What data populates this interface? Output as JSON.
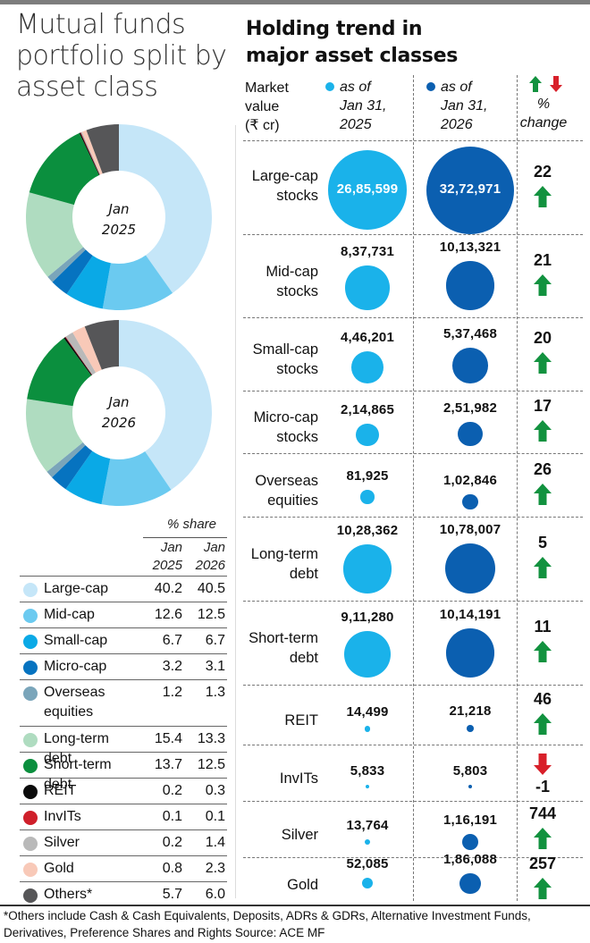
{
  "colors": {
    "large_cap": "#c5e6f8",
    "mid_cap": "#6bcaf0",
    "small_cap": "#0aa9e6",
    "micro_cap": "#0673c0",
    "overseas": "#7aa5ba",
    "long_debt": "#afdcc0",
    "short_debt": "#0b8f3e",
    "reit": "#0a0a0a",
    "invits": "#cf1f2a",
    "silver": "#b9b9b9",
    "gold": "#f8c9b8",
    "others": "#565658",
    "bubble_2025": "#1ab2ea",
    "bubble_2026": "#0b5fb0",
    "up": "#12923f",
    "down": "#d8202a"
  },
  "left": {
    "title": "Mutual funds portfolio split by asset class",
    "donut_2025_label_1": "Jan",
    "donut_2025_label_2": "2025",
    "donut_2026_label_1": "Jan",
    "donut_2026_label_2": "2026",
    "table": {
      "header": "% share",
      "col1_line1": "Jan",
      "col1_line2": "2025",
      "col2_line1": "Jan",
      "col2_line2": "2026"
    }
  },
  "right": {
    "title_line1": "Holding trend in",
    "title_line2": "major asset classes",
    "header_market_value": [
      "Market",
      "value",
      "(₹ cr)"
    ],
    "header_2025": [
      "as of",
      "Jan 31,",
      "2025"
    ],
    "header_2026": [
      "as of",
      "Jan 31,",
      "2026"
    ],
    "header_change": [
      "%",
      "change"
    ]
  },
  "footnote_line1": "*Others include Cash & Cash Equivalents, Deposits, ADRs & GDRs, Alternative Investment Funds,",
  "footnote_line2": "Derivatives, Preference Shares and Rights    Source: ACE MF",
  "chart_data": [
    {
      "type": "pie",
      "title": "Mutual funds portfolio split by asset class — Jan 2025",
      "unit": "% share",
      "categories": [
        "Large-cap",
        "Mid-cap",
        "Small-cap",
        "Micro-cap",
        "Overseas equities",
        "Long-term debt",
        "Short-term debt",
        "REIT",
        "InvITs",
        "Silver",
        "Gold",
        "Others*"
      ],
      "values": [
        40.2,
        12.6,
        6.7,
        3.2,
        1.2,
        15.4,
        13.7,
        0.2,
        0.1,
        0.2,
        0.8,
        5.7
      ],
      "center_label": "Jan 2025"
    },
    {
      "type": "pie",
      "title": "Mutual funds portfolio split by asset class — Jan 2026",
      "unit": "% share",
      "categories": [
        "Large-cap",
        "Mid-cap",
        "Small-cap",
        "Micro-cap",
        "Overseas equities",
        "Long-term debt",
        "Short-term debt",
        "REIT",
        "InvITs",
        "Silver",
        "Gold",
        "Others*"
      ],
      "values": [
        40.5,
        12.5,
        6.7,
        3.1,
        1.3,
        13.3,
        12.5,
        0.3,
        0.1,
        1.4,
        2.3,
        6.0
      ],
      "center_label": "Jan 2026"
    },
    {
      "type": "table",
      "title": "% share",
      "columns": [
        "Asset class",
        "Jan 2025",
        "Jan 2026"
      ],
      "rows": [
        {
          "name": "Large-cap",
          "v2025": "40.2",
          "v2026": "40.5",
          "color_key": "large_cap"
        },
        {
          "name": "Mid-cap",
          "v2025": "12.6",
          "v2026": "12.5",
          "color_key": "mid_cap"
        },
        {
          "name": "Small-cap",
          "v2025": "6.7",
          "v2026": "6.7",
          "color_key": "small_cap"
        },
        {
          "name": "Micro-cap",
          "v2025": "3.2",
          "v2026": "3.1",
          "color_key": "micro_cap"
        },
        {
          "name": "Overseas equities",
          "v2025": "1.2",
          "v2026": "1.3",
          "color_key": "overseas"
        },
        {
          "name": "Long-term debt",
          "v2025": "15.4",
          "v2026": "13.3",
          "color_key": "long_debt"
        },
        {
          "name": "Short-term debt",
          "v2025": "13.7",
          "v2026": "12.5",
          "color_key": "short_debt"
        },
        {
          "name": "REIT",
          "v2025": "0.2",
          "v2026": "0.3",
          "color_key": "reit"
        },
        {
          "name": "InvITs",
          "v2025": "0.1",
          "v2026": "0.1",
          "color_key": "invits"
        },
        {
          "name": "Silver",
          "v2025": "0.2",
          "v2026": "1.4",
          "color_key": "silver"
        },
        {
          "name": "Gold",
          "v2025": "0.8",
          "v2026": "2.3",
          "color_key": "gold"
        },
        {
          "name": "Others*",
          "v2025": "5.7",
          "v2026": "6.0",
          "color_key": "others"
        }
      ]
    },
    {
      "type": "scatter",
      "subtype": "proportional-bubble table",
      "title": "Holding trend in major asset classes",
      "unit": "Market value (₹ cr)",
      "series": [
        {
          "name": "as of Jan 31, 2025",
          "values": [
            2685599,
            837731,
            446201,
            214865,
            81925,
            1028362,
            911280,
            14499,
            5833,
            13764,
            52085
          ]
        },
        {
          "name": "as of Jan 31, 2026",
          "values": [
            3272971,
            1013321,
            537468,
            251982,
            102846,
            1078007,
            1014191,
            21218,
            5803,
            116191,
            186088
          ]
        }
      ],
      "categories": [
        "Large-cap stocks",
        "Mid-cap stocks",
        "Small-cap stocks",
        "Micro-cap stocks",
        "Overseas equities",
        "Long-term debt",
        "Short-term debt",
        "REIT",
        "InvITs",
        "Silver",
        "Gold"
      ],
      "rows": [
        {
          "label": [
            "Large-cap",
            "stocks"
          ],
          "v2025": "26,85,599",
          "v2026": "32,72,971",
          "change": "22",
          "dir": "up"
        },
        {
          "label": [
            "Mid-cap",
            "stocks"
          ],
          "v2025": "8,37,731",
          "v2026": "10,13,321",
          "change": "21",
          "dir": "up"
        },
        {
          "label": [
            "Small-cap",
            "stocks"
          ],
          "v2025": "4,46,201",
          "v2026": "5,37,468",
          "change": "20",
          "dir": "up"
        },
        {
          "label": [
            "Micro-cap",
            "stocks"
          ],
          "v2025": "2,14,865",
          "v2026": "2,51,982",
          "change": "17",
          "dir": "up"
        },
        {
          "label": [
            "Overseas",
            "equities"
          ],
          "v2025": "81,925",
          "v2026": "1,02,846",
          "change": "26",
          "dir": "up"
        },
        {
          "label": [
            "Long-term",
            "debt"
          ],
          "v2025": "10,28,362",
          "v2026": "10,78,007",
          "change": "5",
          "dir": "up"
        },
        {
          "label": [
            "Short-term",
            "debt"
          ],
          "v2025": "9,11,280",
          "v2026": "10,14,191",
          "change": "11",
          "dir": "up"
        },
        {
          "label": [
            "REIT"
          ],
          "v2025": "14,499",
          "v2026": "21,218",
          "change": "46",
          "dir": "up"
        },
        {
          "label": [
            "InvITs"
          ],
          "v2025": "5,833",
          "v2026": "5,803",
          "change": "-1",
          "dir": "down"
        },
        {
          "label": [
            "Silver"
          ],
          "v2025": "13,764",
          "v2026": "1,16,191",
          "change": "744",
          "dir": "up"
        },
        {
          "label": [
            "Gold"
          ],
          "v2025": "52,085",
          "v2026": "1,86,088",
          "change": "257",
          "dir": "up"
        }
      ],
      "pct_change": [
        22,
        21,
        20,
        17,
        26,
        5,
        11,
        46,
        -1,
        744,
        257
      ]
    }
  ]
}
